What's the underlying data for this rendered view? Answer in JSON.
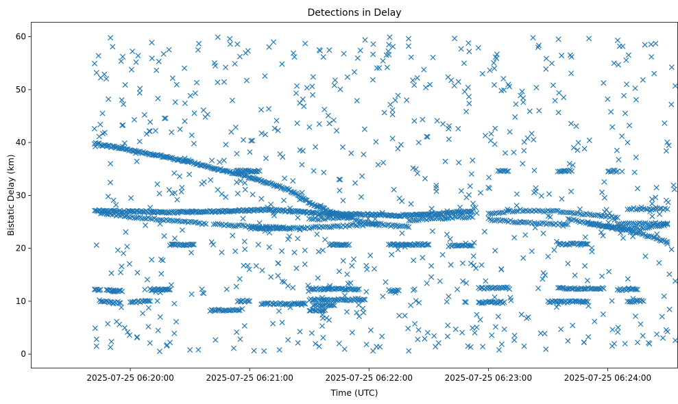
{
  "chart_data": {
    "type": "scatter",
    "title": "Detections in Delay",
    "xlabel": "Time (UTC)",
    "ylabel": "Bistatic Delay (km)",
    "x_axis_type": "datetime",
    "xlim": [
      "2025-07-25 06:19:10",
      "2025-07-25 06:24:35"
    ],
    "ylim": [
      -2.7,
      62.8
    ],
    "x_ticks": [
      "2025-07-25 06:20:00",
      "2025-07-25 06:21:00",
      "2025-07-25 06:22:00",
      "2025-07-25 06:23:00",
      "2025-07-25 06:24:00"
    ],
    "y_ticks": [
      0,
      10,
      20,
      30,
      40,
      50,
      60
    ],
    "grid": false,
    "legend": false,
    "marker": "x",
    "color": "#1f77b4",
    "tracks": [
      {
        "points": [
          [
            "2025-07-25 06:19:42",
            39.8
          ],
          [
            "2025-07-25 06:20:00",
            38.6
          ],
          [
            "2025-07-25 06:20:30",
            36.3
          ],
          [
            "2025-07-25 06:21:00",
            33.5
          ],
          [
            "2025-07-25 06:21:20",
            31.0
          ],
          [
            "2025-07-25 06:21:30",
            28.6
          ],
          [
            "2025-07-25 06:21:40",
            27.0
          ],
          [
            "2025-07-25 06:21:52",
            25.8
          ]
        ],
        "spacing_s": 0.6
      },
      {
        "points": [
          [
            "2025-07-25 06:19:42",
            27.1
          ],
          [
            "2025-07-25 06:20:20",
            26.8
          ],
          [
            "2025-07-25 06:20:43",
            27.0
          ],
          [
            "2025-07-25 06:21:10",
            27.3
          ],
          [
            "2025-07-25 06:21:40",
            26.5
          ],
          [
            "2025-07-25 06:22:20",
            26.2
          ],
          [
            "2025-07-25 06:22:52",
            27.0
          ]
        ],
        "spacing_s": 0.6
      },
      {
        "points": [
          [
            "2025-07-25 06:19:45",
            26.7
          ],
          [
            "2025-07-25 06:20:00",
            25.9
          ],
          [
            "2025-07-25 06:20:20",
            25.3
          ],
          [
            "2025-07-25 06:20:38",
            24.6
          ]
        ],
        "spacing_s": 1.0
      },
      {
        "points": [
          [
            "2025-07-25 06:20:42",
            24.6
          ],
          [
            "2025-07-25 06:21:05",
            24.0
          ],
          [
            "2025-07-25 06:21:25",
            23.8
          ],
          [
            "2025-07-25 06:21:45",
            24.2
          ],
          [
            "2025-07-25 06:22:05",
            24.6
          ],
          [
            "2025-07-25 06:22:20",
            24.0
          ]
        ],
        "spacing_s": 1.0
      },
      {
        "points": [
          [
            "2025-07-25 06:21:30",
            25.5
          ],
          [
            "2025-07-25 06:21:50",
            25.8
          ],
          [
            "2025-07-25 06:22:05",
            24.3
          ]
        ],
        "spacing_s": 1.0
      },
      {
        "points": [
          [
            "2025-07-25 06:22:20",
            25.2
          ],
          [
            "2025-07-25 06:22:45",
            25.9
          ],
          [
            "2025-07-25 06:22:52",
            25.9
          ]
        ],
        "spacing_s": 1.0
      },
      {
        "points": [
          [
            "2025-07-25 06:23:00",
            25.5
          ],
          [
            "2025-07-25 06:23:20",
            24.8
          ],
          [
            "2025-07-25 06:23:40",
            24.5
          ]
        ],
        "spacing_s": 1.0
      },
      {
        "points": [
          [
            "2025-07-25 06:23:00",
            26.5
          ],
          [
            "2025-07-25 06:23:15",
            27.2
          ],
          [
            "2025-07-25 06:23:35",
            27.0
          ],
          [
            "2025-07-25 06:23:55",
            26.2
          ],
          [
            "2025-07-25 06:24:05",
            25.8
          ]
        ],
        "spacing_s": 1.0
      },
      {
        "points": [
          [
            "2025-07-25 06:23:40",
            25.5
          ],
          [
            "2025-07-25 06:24:00",
            24.2
          ],
          [
            "2025-07-25 06:24:15",
            23.7
          ],
          [
            "2025-07-25 06:24:30",
            24.5
          ]
        ],
        "spacing_s": 1.0
      },
      {
        "points": [
          [
            "2025-07-25 06:23:50",
            24.6
          ],
          [
            "2025-07-25 06:24:10",
            23.5
          ],
          [
            "2025-07-25 06:24:30",
            21.2
          ]
        ],
        "spacing_s": 0.8
      },
      {
        "points": [
          [
            "2025-07-25 06:24:10",
            27.5
          ],
          [
            "2025-07-25 06:24:30",
            27.4
          ]
        ],
        "spacing_s": 1.0
      },
      {
        "points": [
          [
            "2025-07-25 06:24:05",
            24.7
          ],
          [
            "2025-07-25 06:24:30",
            24.7
          ]
        ],
        "spacing_s": 1.0
      },
      {
        "points": [
          [
            "2025-07-25 06:20:20",
            20.7
          ],
          [
            "2025-07-25 06:20:32",
            20.7
          ]
        ],
        "spacing_s": 0.6
      },
      {
        "points": [
          [
            "2025-07-25 06:21:40",
            20.7
          ],
          [
            "2025-07-25 06:21:50",
            20.7
          ]
        ],
        "spacing_s": 0.6
      },
      {
        "points": [
          [
            "2025-07-25 06:22:10",
            20.7
          ],
          [
            "2025-07-25 06:22:30",
            20.7
          ]
        ],
        "spacing_s": 0.6
      },
      {
        "points": [
          [
            "2025-07-25 06:22:40",
            20.5
          ],
          [
            "2025-07-25 06:22:52",
            20.5
          ]
        ],
        "spacing_s": 0.7
      },
      {
        "points": [
          [
            "2025-07-25 06:23:35",
            20.8
          ],
          [
            "2025-07-25 06:23:50",
            20.8
          ]
        ],
        "spacing_s": 0.7
      },
      {
        "points": [
          [
            "2025-07-25 06:20:53",
            34.6
          ],
          [
            "2025-07-25 06:21:05",
            34.6
          ]
        ],
        "spacing_s": 0.6
      },
      {
        "points": [
          [
            "2025-07-25 06:21:00",
            23.8
          ],
          [
            "2025-07-25 06:21:18",
            23.8
          ]
        ],
        "spacing_s": 0.7
      },
      {
        "points": [
          [
            "2025-07-25 06:23:05",
            34.6
          ],
          [
            "2025-07-25 06:23:10",
            34.6
          ]
        ],
        "spacing_s": 0.7
      },
      {
        "points": [
          [
            "2025-07-25 06:23:35",
            34.6
          ],
          [
            "2025-07-25 06:23:42",
            34.6
          ]
        ],
        "spacing_s": 0.7
      },
      {
        "points": [
          [
            "2025-07-25 06:24:00",
            34.6
          ],
          [
            "2025-07-25 06:24:05",
            34.6
          ]
        ],
        "spacing_s": 0.7
      },
      {
        "points": [
          [
            "2025-07-25 06:19:42",
            12.2
          ],
          [
            "2025-07-25 06:19:45",
            12.2
          ]
        ],
        "spacing_s": 0.6
      },
      {
        "points": [
          [
            "2025-07-25 06:19:48",
            12.0
          ],
          [
            "2025-07-25 06:19:55",
            12.0
          ]
        ],
        "spacing_s": 0.6
      },
      {
        "points": [
          [
            "2025-07-25 06:20:10",
            12.2
          ],
          [
            "2025-07-25 06:20:20",
            12.2
          ]
        ],
        "spacing_s": 0.6
      },
      {
        "points": [
          [
            "2025-07-25 06:21:30",
            12.3
          ],
          [
            "2025-07-25 06:21:55",
            12.3
          ]
        ],
        "spacing_s": 0.7
      },
      {
        "points": [
          [
            "2025-07-25 06:22:10",
            12.0
          ],
          [
            "2025-07-25 06:22:15",
            12.0
          ]
        ],
        "spacing_s": 0.7
      },
      {
        "points": [
          [
            "2025-07-25 06:22:55",
            12.5
          ],
          [
            "2025-07-25 06:23:10",
            12.5
          ]
        ],
        "spacing_s": 0.7
      },
      {
        "points": [
          [
            "2025-07-25 06:23:35",
            12.4
          ],
          [
            "2025-07-25 06:23:58",
            12.4
          ]
        ],
        "spacing_s": 0.7
      },
      {
        "points": [
          [
            "2025-07-25 06:24:05",
            12.2
          ],
          [
            "2025-07-25 06:24:15",
            12.2
          ]
        ],
        "spacing_s": 0.7
      },
      {
        "points": [
          [
            "2025-07-25 06:19:45",
            10.0
          ],
          [
            "2025-07-25 06:19:55",
            9.7
          ]
        ],
        "spacing_s": 0.7
      },
      {
        "points": [
          [
            "2025-07-25 06:20:00",
            9.8
          ],
          [
            "2025-07-25 06:20:10",
            10.0
          ]
        ],
        "spacing_s": 0.7
      },
      {
        "points": [
          [
            "2025-07-25 06:20:54",
            10.0
          ],
          [
            "2025-07-25 06:21:00",
            10.0
          ]
        ],
        "spacing_s": 0.7
      },
      {
        "points": [
          [
            "2025-07-25 06:21:06",
            9.5
          ],
          [
            "2025-07-25 06:21:28",
            9.5
          ]
        ],
        "spacing_s": 0.7
      },
      {
        "points": [
          [
            "2025-07-25 06:21:30",
            10.3
          ],
          [
            "2025-07-25 06:21:58",
            10.3
          ]
        ],
        "spacing_s": 0.7
      },
      {
        "points": [
          [
            "2025-07-25 06:21:32",
            9.3
          ],
          [
            "2025-07-25 06:21:42",
            9.3
          ]
        ],
        "spacing_s": 0.7
      },
      {
        "points": [
          [
            "2025-07-25 06:22:55",
            9.8
          ],
          [
            "2025-07-25 06:23:08",
            9.8
          ]
        ],
        "spacing_s": 0.7
      },
      {
        "points": [
          [
            "2025-07-25 06:23:30",
            9.9
          ],
          [
            "2025-07-25 06:23:50",
            9.9
          ]
        ],
        "spacing_s": 0.7
      },
      {
        "points": [
          [
            "2025-07-25 06:24:10",
            10.0
          ],
          [
            "2025-07-25 06:24:18",
            10.0
          ]
        ],
        "spacing_s": 0.7
      },
      {
        "points": [
          [
            "2025-07-25 06:20:40",
            8.3
          ],
          [
            "2025-07-25 06:20:55",
            8.3
          ]
        ],
        "spacing_s": 0.7
      },
      {
        "points": [
          [
            "2025-07-25 06:21:30",
            8.3
          ],
          [
            "2025-07-25 06:21:38",
            8.3
          ]
        ],
        "spacing_s": 0.7
      }
    ],
    "noise": {
      "count": 740,
      "x_range": [
        "2025-07-25 06:19:42",
        "2025-07-25 06:24:36"
      ],
      "y_range": [
        0.5,
        60.0
      ]
    },
    "scatter_points": [
      [
        "2025-07-25 06:19:43",
        53.2
      ],
      [
        "2025-07-25 06:19:44",
        56.4
      ],
      [
        "2025-07-25 06:19:50",
        59.8
      ],
      [
        "2025-07-25 06:19:46",
        45.5
      ],
      [
        "2025-07-25 06:19:49",
        48.2
      ],
      [
        "2025-07-25 06:19:50",
        36.0
      ],
      [
        "2025-07-25 06:19:43",
        20.6
      ],
      [
        "2025-07-25 06:19:43",
        2.8
      ],
      [
        "2025-07-25 06:19:43",
        1.5
      ],
      [
        "2025-07-25 06:19:50",
        1.3
      ],
      [
        "2025-07-25 06:20:02",
        44.3
      ],
      [
        "2025-07-25 06:20:10",
        27.7
      ],
      [
        "2025-07-25 06:20:20",
        2.2
      ],
      [
        "2025-07-25 06:20:30",
        0.8
      ],
      [
        "2025-07-25 06:20:32",
        39.8
      ],
      [
        "2025-07-25 06:20:48",
        39.6
      ],
      [
        "2025-07-25 06:20:50",
        59.6
      ],
      [
        "2025-07-25 06:20:52",
        1.1
      ],
      [
        "2025-07-25 06:21:12",
        59.0
      ],
      [
        "2025-07-25 06:21:15",
        0.8
      ],
      [
        "2025-07-25 06:21:35",
        57.5
      ],
      [
        "2025-07-25 06:21:45",
        2.0
      ],
      [
        "2025-07-25 06:21:58",
        59.4
      ],
      [
        "2025-07-25 06:22:02",
        0.6
      ],
      [
        "2025-07-25 06:22:10",
        58.5
      ],
      [
        "2025-07-25 06:22:20",
        0.6
      ],
      [
        "2025-07-25 06:22:28",
        2.9
      ],
      [
        "2025-07-25 06:22:35",
        2.1
      ],
      [
        "2025-07-25 06:22:50",
        58.8
      ],
      [
        "2025-07-25 06:22:55",
        57.9
      ],
      [
        "2025-07-25 06:23:18",
        1.5
      ],
      [
        "2025-07-25 06:23:25",
        58.0
      ],
      [
        "2025-07-25 06:23:40",
        2.5
      ],
      [
        "2025-07-25 06:24:05",
        59.3
      ],
      [
        "2025-07-25 06:24:06",
        58.2
      ],
      [
        "2025-07-25 06:24:15",
        2.2
      ],
      [
        "2025-07-25 06:24:34",
        2.6
      ],
      [
        "2025-07-25 06:24:35",
        5.6
      ],
      [
        "2025-07-25 06:24:35",
        44.8
      ],
      [
        "2025-07-25 06:24:35",
        36.8
      ],
      [
        "2025-07-25 06:24:34",
        50.7
      ],
      [
        "2025-07-25 06:24:34",
        13.8
      ],
      [
        "2025-07-25 06:24:22",
        56.2
      ],
      [
        "2025-07-25 06:24:32",
        47.2
      ],
      [
        "2025-07-25 06:24:10",
        40.0
      ],
      [
        "2025-07-25 06:22:40",
        42.6
      ],
      [
        "2025-07-25 06:21:35",
        43.5
      ],
      [
        "2025-07-25 06:20:25",
        42.5
      ],
      [
        "2025-07-25 06:22:25",
        40.0
      ],
      [
        "2025-07-25 06:23:00",
        31.5
      ]
    ]
  }
}
